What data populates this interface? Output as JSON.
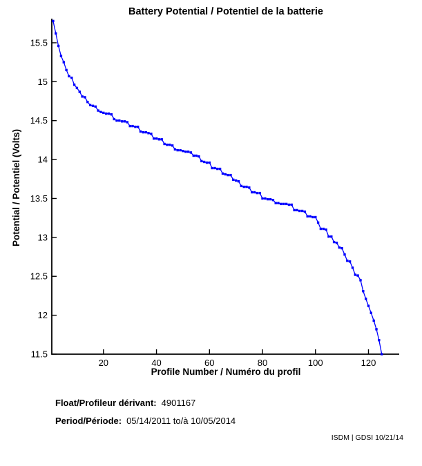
{
  "chart_data": {
    "type": "line",
    "title": "Battery Potential / Potentiel de la batterie",
    "xlabel": "Profile Number / Numéro du profil",
    "ylabel": "Potential / Potentiel (Volts)",
    "xlim": [
      0.5,
      131.6
    ],
    "ylim": [
      11.5,
      15.81
    ],
    "xticks": [
      20,
      40,
      60,
      80,
      100,
      120
    ],
    "yticks": [
      11.5,
      12,
      12.5,
      13,
      13.5,
      14,
      14.5,
      15,
      15.5
    ],
    "grid": false,
    "legend": "none",
    "line_color": "#0000FF",
    "axis_color": "#000000",
    "marker": "square",
    "series": [
      {
        "name": "Battery potential",
        "x": [
          1,
          2,
          3,
          4,
          5,
          6,
          7,
          8,
          9,
          10,
          11,
          12,
          13,
          14,
          15,
          16,
          17,
          18,
          19,
          20,
          21,
          22,
          23,
          24,
          25,
          26,
          27,
          28,
          29,
          30,
          31,
          32,
          33,
          34,
          35,
          36,
          37,
          38,
          39,
          40,
          41,
          42,
          43,
          44,
          45,
          46,
          47,
          48,
          49,
          50,
          51,
          52,
          53,
          54,
          55,
          56,
          57,
          58,
          59,
          60,
          61,
          62,
          63,
          64,
          65,
          66,
          67,
          68,
          69,
          70,
          71,
          72,
          73,
          74,
          75,
          76,
          77,
          78,
          79,
          80,
          81,
          82,
          83,
          84,
          85,
          86,
          87,
          88,
          89,
          90,
          91,
          92,
          93,
          94,
          95,
          96,
          97,
          98,
          99,
          100,
          101,
          102,
          103,
          104,
          105,
          106,
          107,
          108,
          109,
          110,
          111,
          112,
          113,
          114,
          115,
          116,
          117,
          118,
          119,
          120,
          121,
          122,
          123,
          124,
          125
        ],
        "y": [
          15.78,
          15.62,
          15.46,
          15.33,
          15.25,
          15.15,
          15.07,
          15.05,
          14.96,
          14.92,
          14.87,
          14.81,
          14.8,
          14.74,
          14.7,
          14.69,
          14.68,
          14.63,
          14.61,
          14.6,
          14.59,
          14.59,
          14.58,
          14.52,
          14.5,
          14.5,
          14.49,
          14.49,
          14.48,
          14.43,
          14.43,
          14.42,
          14.42,
          14.36,
          14.35,
          14.35,
          14.34,
          14.33,
          14.27,
          14.27,
          14.26,
          14.26,
          14.2,
          14.19,
          14.19,
          14.18,
          14.13,
          14.12,
          14.12,
          14.11,
          14.1,
          14.1,
          14.09,
          14.05,
          14.05,
          14.04,
          13.98,
          13.97,
          13.96,
          13.96,
          13.89,
          13.89,
          13.88,
          13.88,
          13.82,
          13.81,
          13.8,
          13.8,
          13.74,
          13.73,
          13.72,
          13.66,
          13.65,
          13.65,
          13.64,
          13.58,
          13.58,
          13.57,
          13.57,
          13.5,
          13.5,
          13.49,
          13.49,
          13.48,
          13.44,
          13.44,
          13.43,
          13.43,
          13.43,
          13.42,
          13.42,
          13.35,
          13.35,
          13.34,
          13.34,
          13.33,
          13.27,
          13.27,
          13.26,
          13.26,
          13.19,
          13.11,
          13.11,
          13.1,
          13.01,
          13.01,
          12.94,
          12.93,
          12.87,
          12.86,
          12.78,
          12.7,
          12.69,
          12.61,
          12.52,
          12.51,
          12.45,
          12.31,
          12.21,
          12.12,
          12.03,
          11.93,
          11.82,
          11.68,
          11.5
        ]
      }
    ]
  },
  "footer": {
    "float_label": "Float/Profileur dérivant:",
    "float_value": "4901167",
    "period_label": "Period/Période:",
    "period_value": "05/14/2011  to/à  10/05/2014",
    "credit": "ISDM | GDSI 10/21/14"
  }
}
